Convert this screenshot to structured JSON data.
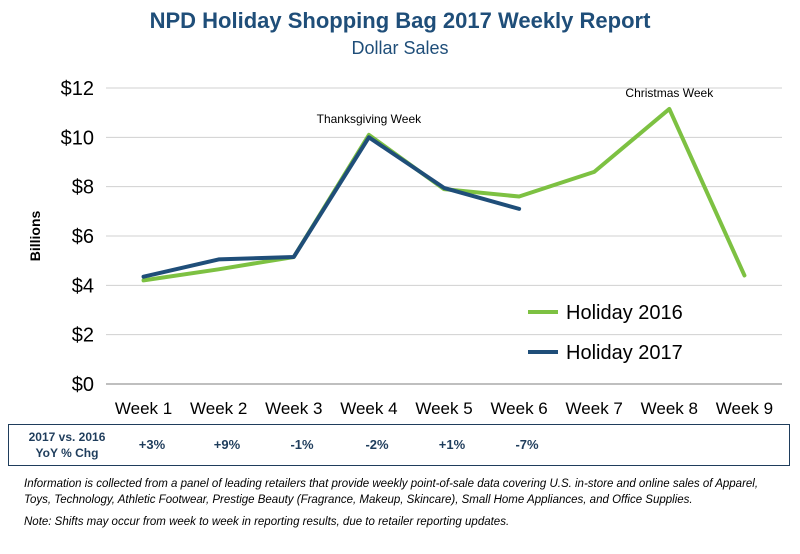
{
  "chart_data": {
    "type": "line",
    "title": "NPD Holiday Shopping Bag 2017 Weekly Report",
    "subtitle": "Dollar Sales",
    "ylabel": "Billions",
    "xlabel": "",
    "categories": [
      "Week 1",
      "Week 2",
      "Week 3",
      "Week 4",
      "Week 5",
      "Week 6",
      "Week 7",
      "Week 8",
      "Week 9"
    ],
    "ylim": [
      0,
      12
    ],
    "yticks": [
      "$0",
      "$2",
      "$4",
      "$6",
      "$8",
      "$10",
      "$12"
    ],
    "grid": "horizontal",
    "legend_position": "lower-right",
    "series": [
      {
        "name": "Holiday 2016",
        "color": "#7dc142",
        "values": [
          4.2,
          4.65,
          5.15,
          10.1,
          7.9,
          7.6,
          8.6,
          11.15,
          4.4
        ]
      },
      {
        "name": "Holiday 2017",
        "color": "#1f4e79",
        "values": [
          4.35,
          5.05,
          5.15,
          10.0,
          7.95,
          7.1,
          null,
          null,
          null
        ]
      }
    ],
    "annotations": [
      {
        "text": "Thanksgiving Week",
        "category": "Week 4"
      },
      {
        "text": "Christmas Week",
        "category": "Week 8"
      }
    ]
  },
  "yoy": {
    "label_line1": "2017 vs. 2016",
    "label_line2": "YoY % Chg",
    "values": [
      "+3%",
      "+9%",
      "-1%",
      "-2%",
      "+1%",
      "-7%"
    ]
  },
  "notes": {
    "info": "Information is collected from a panel of leading retailers that provide weekly point-of-sale data covering U.S. in-store and online sales of Apparel, Toys, Technology, Athletic Footwear, Prestige Beauty (Fragrance, Makeup, Skincare), Small Home Appliances, and Office Supplies.",
    "shifts": "Note: Shifts may occur from week to week in reporting results, due to retailer reporting updates."
  }
}
